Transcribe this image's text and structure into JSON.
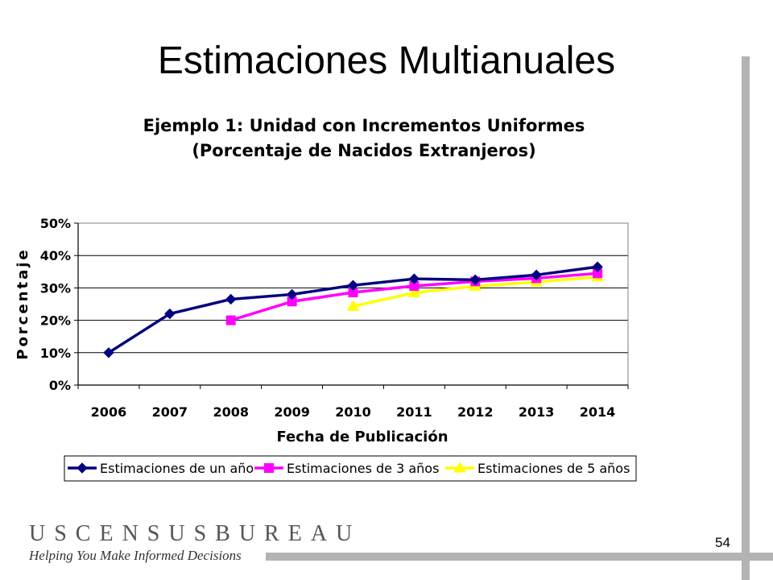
{
  "slide": {
    "title": "Estimaciones Multianuales",
    "page_number": "54",
    "logo_name": "USCENSUSBUREAU",
    "logo_tagline": "Helping You Make Informed Decisions"
  },
  "chart_data": {
    "type": "line",
    "title": "Ejemplo 1: Unidad con Incrementos Uniformes",
    "subtitle": "(Porcentaje de Nacidos Extranjeros)",
    "xlabel": "Fecha de Publicación",
    "ylabel": "Porcentaje",
    "categories": [
      "2006",
      "2007",
      "2008",
      "2009",
      "2010",
      "2011",
      "2012",
      "2013",
      "2014"
    ],
    "ylim": [
      0,
      50
    ],
    "yticks": [
      "0%",
      "10%",
      "20%",
      "30%",
      "40%",
      "50%"
    ],
    "grid": true,
    "legend_position": "bottom",
    "series": [
      {
        "name": "Estimaciones de un año",
        "color": "#000080",
        "marker": "diamond",
        "values": [
          10,
          22,
          26.5,
          28,
          30.8,
          32.8,
          32.5,
          34,
          36.5
        ]
      },
      {
        "name": "Estimaciones de 3 años",
        "color": "#ff00ff",
        "marker": "square",
        "values": [
          null,
          null,
          20,
          25.8,
          28.6,
          30.6,
          32,
          33,
          34.5
        ]
      },
      {
        "name": "Estimaciones de 5 años",
        "color": "#ffff00",
        "marker": "triangle",
        "values": [
          null,
          null,
          null,
          null,
          24.3,
          28.5,
          30.5,
          31.8,
          33.4
        ]
      }
    ]
  }
}
